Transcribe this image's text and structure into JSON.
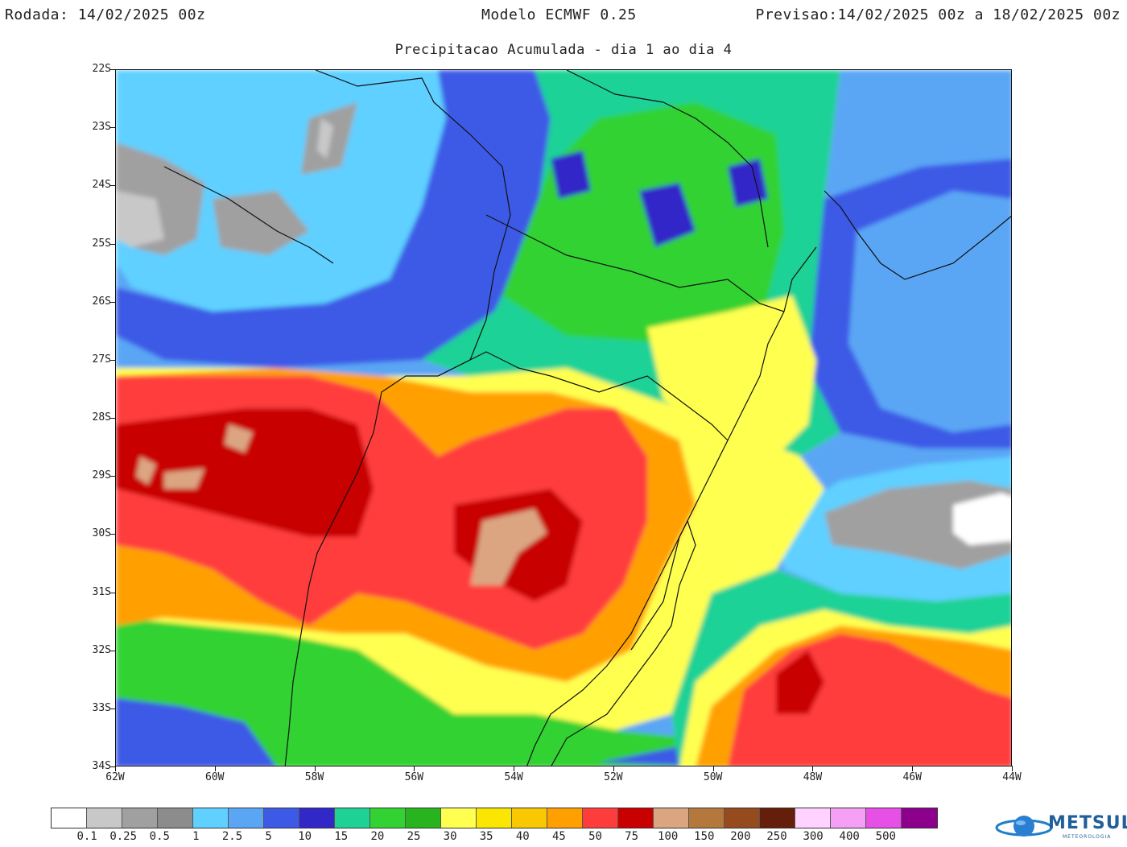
{
  "header": {
    "run_label": "Rodada:",
    "run_value": "14/02/2025 00z",
    "model": "Modelo ECMWF 0.25",
    "forecast_label": "Previsao:",
    "forecast_value": "14/02/2025 00z a 18/02/2025 00z"
  },
  "subtitle": "Precipitacao Acumulada - dia 1 ao dia 4",
  "axes": {
    "lat_labels": [
      "22S",
      "23S",
      "24S",
      "25S",
      "26S",
      "27S",
      "28S",
      "29S",
      "30S",
      "31S",
      "32S",
      "33S",
      "34S"
    ],
    "lon_labels": [
      "62W",
      "60W",
      "58W",
      "56W",
      "54W",
      "52W",
      "50W",
      "48W",
      "46W",
      "44W"
    ],
    "lat_range": [
      -34,
      -22
    ],
    "lon_range": [
      -62,
      -44
    ]
  },
  "colorbar": {
    "colors": [
      "#ffffff",
      "#c8c8c8",
      "#a0a0a0",
      "#8c8c8c",
      "#5fd0ff",
      "#5aa6f5",
      "#3c5ae6",
      "#3228c8",
      "#1ed296",
      "#32d232",
      "#28b41e",
      "#ffff50",
      "#fae600",
      "#fac800",
      "#ffa000",
      "#ff3c3c",
      "#c80000",
      "#dca582",
      "#b4783c",
      "#964b1e",
      "#641e0a",
      "#ffd2ff",
      "#f5a0f5",
      "#e650e6",
      "#8c008c"
    ],
    "labels": [
      "0.1",
      "0.25",
      "0.5",
      "1",
      "2.5",
      "5",
      "10",
      "15",
      "20",
      "25",
      "30",
      "35",
      "40",
      "45",
      "50",
      "75",
      "100",
      "150",
      "200",
      "250",
      "300",
      "400",
      "500"
    ]
  },
  "logo": {
    "name": "METSUL",
    "tagline": "METEOROLOGIA"
  }
}
